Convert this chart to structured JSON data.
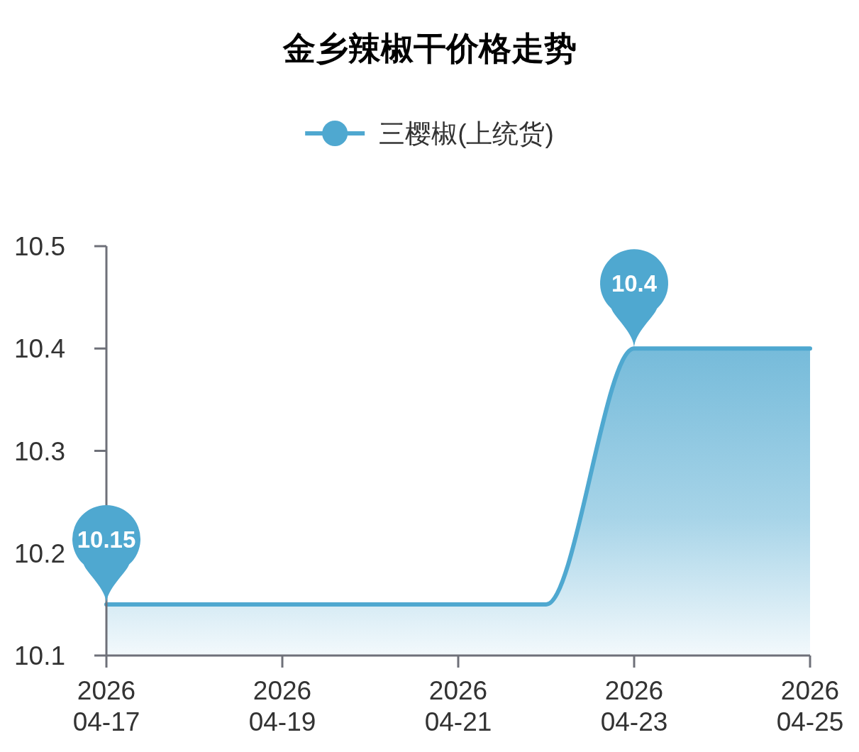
{
  "chart_data": {
    "type": "area",
    "title": "金乡辣椒干价格走势",
    "x": [
      "2026-04-17",
      "2026-04-18",
      "2026-04-19",
      "2026-04-20",
      "2026-04-21",
      "2026-04-22",
      "2026-04-23",
      "2026-04-24",
      "2026-04-25"
    ],
    "series": [
      {
        "name": "三樱椒(上统货)",
        "color": "#4fa8d0",
        "values": [
          10.15,
          10.15,
          10.15,
          10.15,
          10.15,
          10.15,
          10.4,
          10.4,
          10.4
        ],
        "value_labels": [
          "10.15",
          null,
          null,
          null,
          null,
          null,
          "10.4",
          null,
          null
        ]
      }
    ],
    "xlim": [
      "2026-04-17",
      "2026-04-25"
    ],
    "xticks": [
      {
        "value": "2026-04-17",
        "label": "2026\n04-17"
      },
      {
        "value": "2026-04-19",
        "label": "2026\n04-19"
      },
      {
        "value": "2026-04-21",
        "label": "2026\n04-21"
      },
      {
        "value": "2026-04-23",
        "label": "2026\n04-23"
      },
      {
        "value": "2026-04-25",
        "label": "2026\n04-25"
      }
    ],
    "ylim": [
      10.1,
      10.5
    ],
    "yticks": [
      10.1,
      10.2,
      10.3,
      10.4,
      10.5
    ],
    "legend": "top",
    "grid": false
  }
}
